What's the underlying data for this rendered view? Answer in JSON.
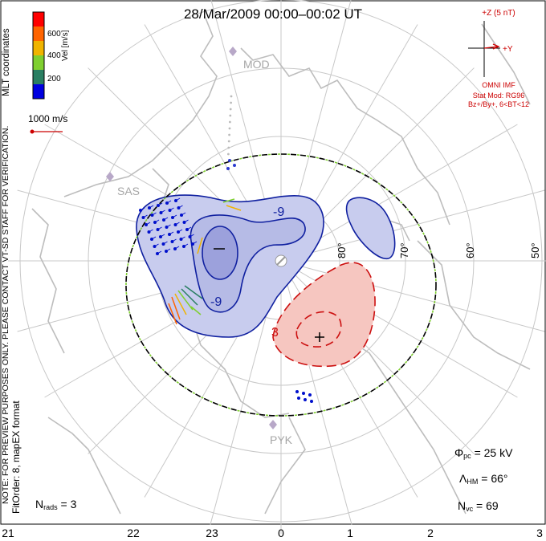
{
  "title": "28/Mar/2009 00:00–00:02 UT",
  "colorbar": {
    "unit_label": "Vel [m/s]",
    "ticks": [
      "600",
      "400",
      "200"
    ],
    "colors": [
      "#0000e0",
      "#2a7f62",
      "#7fcf30",
      "#f0b400",
      "#ff6400",
      "#ff0000"
    ]
  },
  "coords_label": "MLT coordinates",
  "scale_vector_label": "1000 m/s",
  "imf": {
    "z_label": "+Z (5 nT)",
    "y_label": "+Y",
    "title": "OMNI IMF",
    "model": "Stat Mod: RG96",
    "condition": "Bz+/By+, 6<BT<12"
  },
  "radars": [
    "MOD",
    "SAS",
    "PYK"
  ],
  "lat_labels": [
    "80°",
    "70°",
    "60°",
    "50°"
  ],
  "contour_labels": {
    "neg": "-9",
    "neg2": "-9",
    "pos": "3"
  },
  "mlt_labels": [
    "21",
    "22",
    "23",
    "0",
    "1",
    "2",
    "3"
  ],
  "notes": {
    "preview": "NOTE: FOR PREVIEW PURPOSES ONLY. PLEASE CONTACT VT-SD STAFF FOR VERIFICATION.",
    "fit": "FitOrder: 8, mapEX format"
  },
  "stats": {
    "phi_pc": {
      "sym": "Φ",
      "sub": "pc",
      "value": "= 25 kV"
    },
    "lambda_hm": {
      "sym": "Λ",
      "sub": "HM",
      "value": "= 66°"
    },
    "n_vc": {
      "sym": "N",
      "sub": "vc",
      "value": "= 69"
    },
    "n_rads": {
      "sym": "N",
      "sub": "rads",
      "value": "= 3"
    }
  },
  "colors": {
    "neg_contour": "#1020a0",
    "neg_fill": "#c8ccee",
    "pos_contour": "#cc1010",
    "pos_fill": "#f6c6c0",
    "grid": "#c8c8c8",
    "coast": "#c0c0c0",
    "hmb_dash": "#7fcf30"
  }
}
